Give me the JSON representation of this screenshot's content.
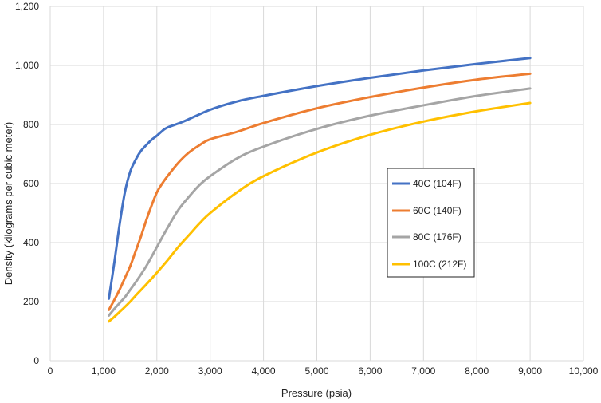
{
  "chart_data": {
    "type": "line",
    "title": "",
    "xlabel": "Pressure (psia)",
    "ylabel": "Density (kilograms per cubic meter)",
    "xlim": [
      0,
      10000
    ],
    "ylim": [
      0,
      1200
    ],
    "x_ticks": [
      "0",
      "1,000",
      "2,000",
      "3,000",
      "4,000",
      "5,000",
      "6,000",
      "7,000",
      "8,000",
      "9,000",
      "10,000"
    ],
    "y_ticks": [
      "0",
      "200",
      "400",
      "600",
      "800",
      "1,000",
      "1,200"
    ],
    "grid": true,
    "legend_position": "center-right",
    "series": [
      {
        "name": "40C (104F)",
        "color": "#4472C4",
        "x": [
          1100,
          1200,
          1300,
          1400,
          1500,
          1600,
          1700,
          1800,
          1900,
          2000,
          2100,
          2200,
          2500,
          3000,
          3500,
          4000,
          5000,
          6000,
          7000,
          8000,
          9000
        ],
        "y": [
          210,
          330,
          460,
          570,
          640,
          680,
          710,
          730,
          748,
          762,
          778,
          790,
          810,
          850,
          878,
          897,
          930,
          958,
          983,
          1005,
          1025
        ]
      },
      {
        "name": "60C (140F)",
        "color": "#ED7D31",
        "x": [
          1100,
          1200,
          1300,
          1400,
          1500,
          1600,
          1700,
          1800,
          1900,
          2000,
          2100,
          2200,
          2400,
          2600,
          2800,
          3000,
          3500,
          4000,
          5000,
          6000,
          7000,
          8000,
          9000
        ],
        "y": [
          172,
          205,
          240,
          280,
          320,
          370,
          420,
          475,
          525,
          570,
          600,
          625,
          670,
          705,
          730,
          750,
          775,
          805,
          855,
          893,
          925,
          952,
          972
        ]
      },
      {
        "name": "80C (176F)",
        "color": "#A5A5A5",
        "x": [
          1100,
          1200,
          1300,
          1400,
          1500,
          1600,
          1800,
          2000,
          2200,
          2400,
          2600,
          2800,
          3000,
          3500,
          4000,
          5000,
          6000,
          7000,
          8000,
          9000
        ],
        "y": [
          153,
          175,
          195,
          215,
          240,
          265,
          320,
          385,
          450,
          510,
          555,
          595,
          625,
          685,
          725,
          785,
          830,
          865,
          897,
          922
        ]
      },
      {
        "name": "100C (212F)",
        "color": "#FFC000",
        "x": [
          1100,
          1200,
          1300,
          1400,
          1500,
          1600,
          1800,
          2000,
          2200,
          2400,
          2600,
          2800,
          3000,
          3500,
          4000,
          5000,
          6000,
          7000,
          8000,
          9000
        ],
        "y": [
          133,
          148,
          165,
          182,
          200,
          220,
          258,
          298,
          340,
          385,
          425,
          465,
          500,
          570,
          625,
          705,
          765,
          810,
          845,
          873
        ]
      }
    ]
  }
}
